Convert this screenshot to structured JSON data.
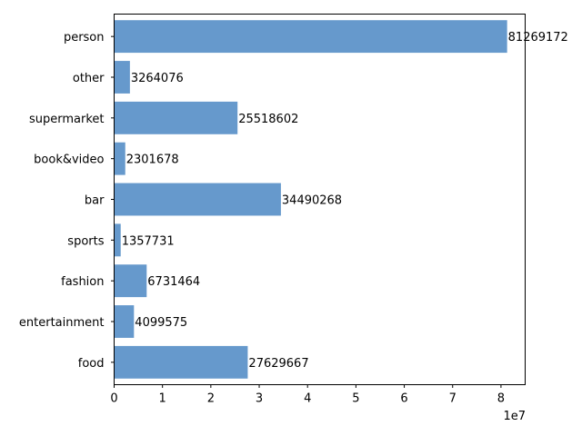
{
  "chart_data": {
    "type": "bar",
    "orientation": "horizontal",
    "categories": [
      "person",
      "other",
      "supermarket",
      "book&video",
      "bar",
      "sports",
      "fashion",
      "entertainment",
      "food"
    ],
    "values": [
      81269172,
      3264076,
      25518602,
      2301678,
      34490268,
      1357731,
      6731464,
      4099575,
      27629667
    ],
    "data_labels": [
      "81269172",
      "3264076",
      "25518602",
      "2301678",
      "34490268",
      "1357731",
      "6731464",
      "4099575",
      "27629667"
    ],
    "title": "",
    "xlabel": "",
    "ylabel": "",
    "xlim": [
      0,
      85000000
    ],
    "x_ticks": [
      0,
      10000000,
      20000000,
      30000000,
      40000000,
      50000000,
      60000000,
      70000000,
      80000000
    ],
    "x_tick_labels": [
      "0",
      "1",
      "2",
      "3",
      "4",
      "5",
      "6",
      "7",
      "8"
    ],
    "x_offset_label": "1e7",
    "grid": false,
    "legend": "none",
    "bar_color": "#6699cc"
  }
}
